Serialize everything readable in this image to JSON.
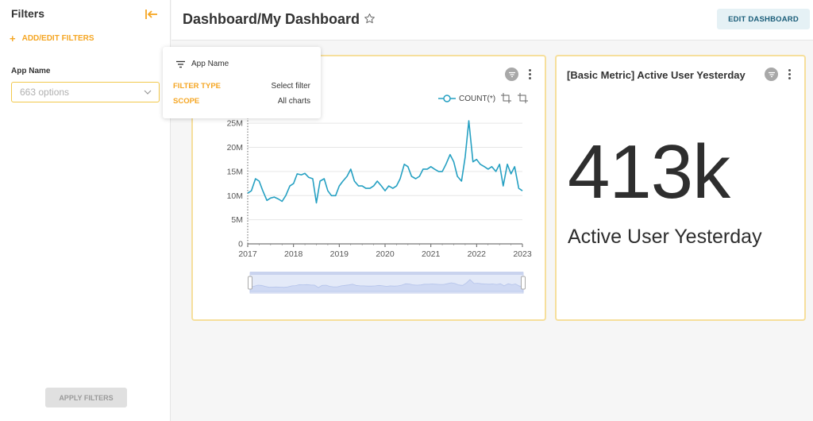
{
  "sidebar": {
    "title": "Filters",
    "add_filters_label": "ADD/EDIT FILTERS",
    "app_name_label": "App Name",
    "app_name_placeholder": "663 options",
    "apply_label": "APPLY FILTERS",
    "accent_color": "#f5a623"
  },
  "header": {
    "title": "Dashboard/My Dashboard",
    "edit_label": "EDIT DASHBOARD"
  },
  "popover": {
    "title": "App Name",
    "rows": [
      {
        "key": "FILTER TYPE",
        "value": "Select filter"
      },
      {
        "key": "SCOPE",
        "value": "All charts"
      }
    ]
  },
  "metric_card": {
    "title": "[Basic Metric] Active User Yesterday",
    "value": "413k",
    "subtitle": "Active User Yesterday"
  },
  "chart_card": {
    "legend_label": "COUNT(*)"
  },
  "chart_data": {
    "type": "line",
    "title": "",
    "xlabel": "",
    "ylabel": "",
    "x_ticks": [
      "2017",
      "2018",
      "2019",
      "2020",
      "2021",
      "2022",
      "2023"
    ],
    "y_ticks": [
      "0",
      "5M",
      "10M",
      "15M",
      "20M",
      "25M"
    ],
    "xlim": [
      2017,
      2023
    ],
    "ylim": [
      0,
      27000000
    ],
    "line_color": "#25a0c2",
    "series": [
      {
        "name": "COUNT(*)",
        "x": [
          2017.0,
          2017.08,
          2017.17,
          2017.25,
          2017.33,
          2017.42,
          2017.5,
          2017.58,
          2017.67,
          2017.75,
          2017.83,
          2017.92,
          2018.0,
          2018.08,
          2018.17,
          2018.25,
          2018.33,
          2018.42,
          2018.5,
          2018.58,
          2018.67,
          2018.75,
          2018.83,
          2018.92,
          2019.0,
          2019.08,
          2019.17,
          2019.25,
          2019.33,
          2019.42,
          2019.5,
          2019.58,
          2019.67,
          2019.75,
          2019.83,
          2019.92,
          2020.0,
          2020.08,
          2020.17,
          2020.25,
          2020.33,
          2020.42,
          2020.5,
          2020.58,
          2020.67,
          2020.75,
          2020.83,
          2020.92,
          2021.0,
          2021.08,
          2021.17,
          2021.25,
          2021.33,
          2021.42,
          2021.5,
          2021.58,
          2021.67,
          2021.75,
          2021.83,
          2021.92,
          2022.0,
          2022.08,
          2022.17,
          2022.25,
          2022.33,
          2022.42,
          2022.5,
          2022.58,
          2022.67,
          2022.75,
          2022.83,
          2022.92,
          2023.0
        ],
        "y": [
          10.5,
          11,
          13.5,
          13,
          11,
          9,
          9.5,
          9.7,
          9.3,
          8.8,
          10,
          12,
          12.5,
          14.5,
          14.3,
          14.6,
          13.8,
          13.5,
          8.5,
          13,
          13.5,
          11,
          10,
          10,
          12,
          13,
          14,
          15.5,
          13,
          12,
          12,
          11.5,
          11.5,
          12,
          13,
          12,
          11,
          12,
          11.5,
          12,
          13.5,
          16.5,
          16,
          14,
          13.5,
          14,
          15.5,
          15.5,
          16,
          15.5,
          15,
          15,
          16.5,
          18.5,
          17,
          14,
          13,
          18,
          25.5,
          17,
          17.5,
          16.5,
          16,
          15.5,
          16,
          15,
          16.5,
          12,
          16.5,
          14.5,
          16,
          11.5,
          11
        ]
      }
    ]
  }
}
